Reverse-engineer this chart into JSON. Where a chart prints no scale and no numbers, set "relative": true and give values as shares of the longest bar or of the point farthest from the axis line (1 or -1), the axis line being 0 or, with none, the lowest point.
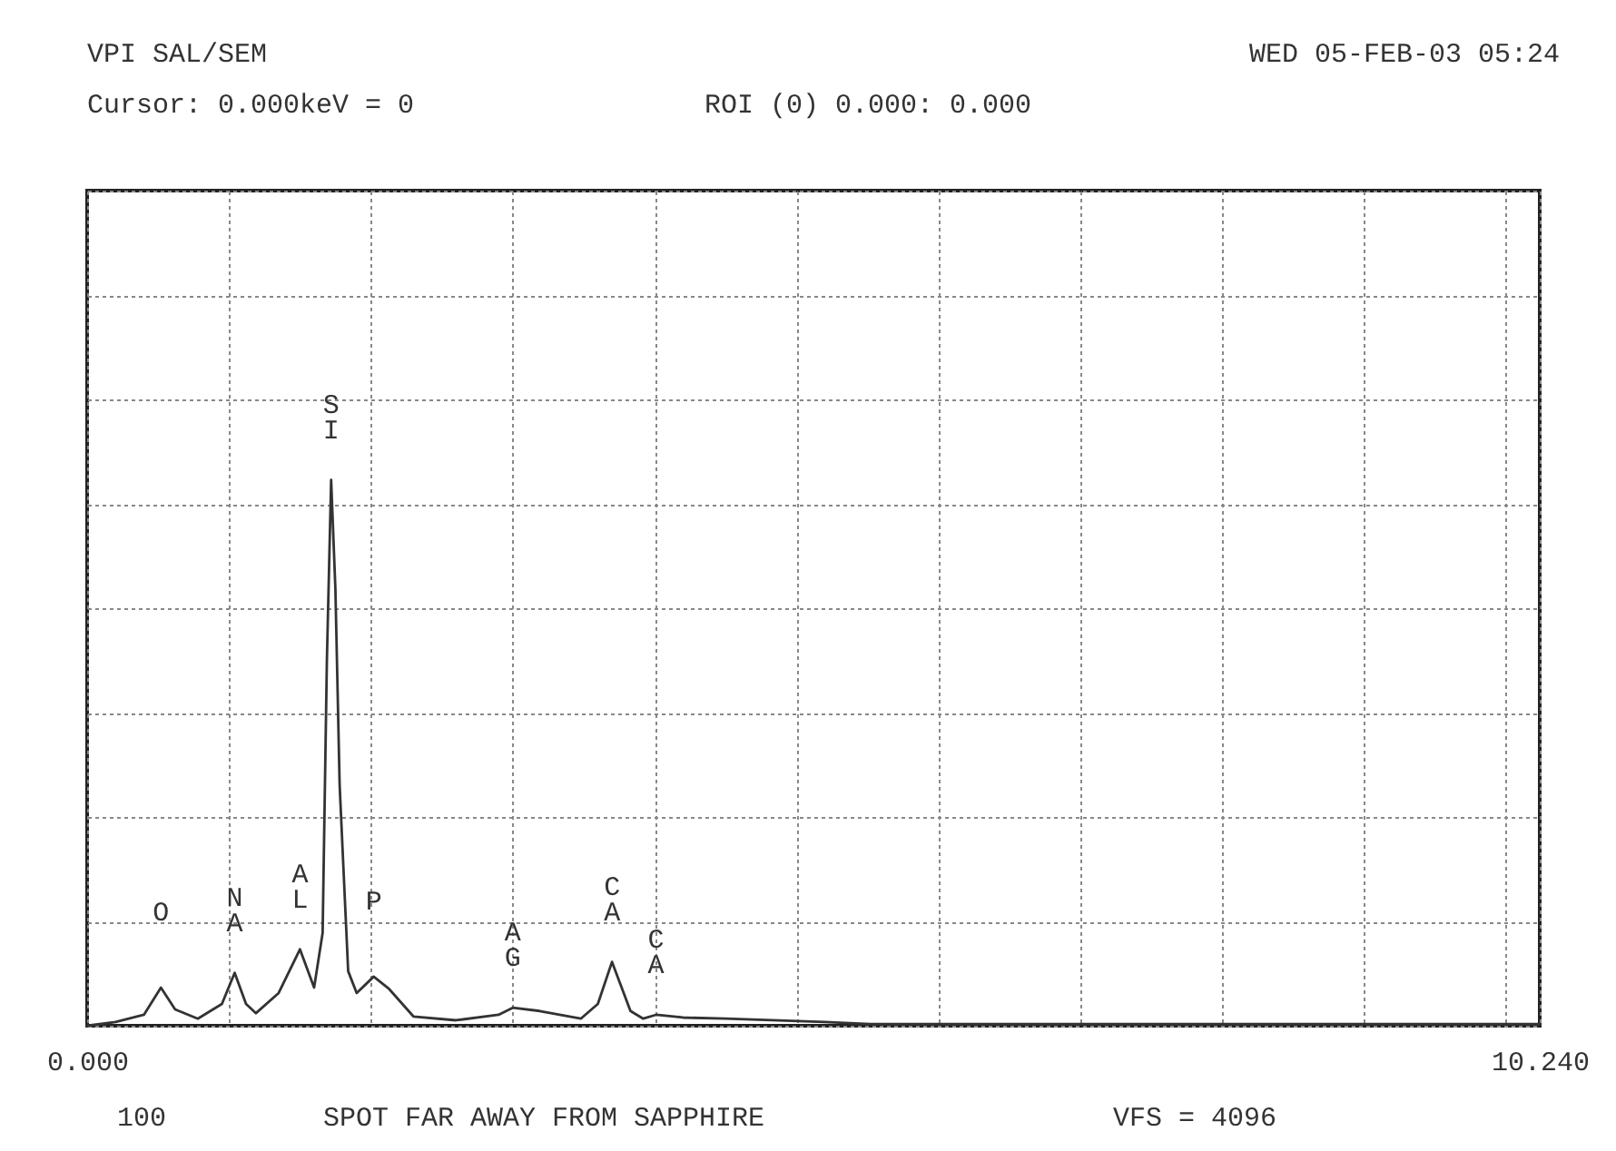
{
  "chart_data": {
    "type": "line",
    "title": "VPI SAL/SEM",
    "x": [
      0,
      0.2,
      0.4,
      0.52,
      0.62,
      0.78,
      0.95,
      1.04,
      1.12,
      1.19,
      1.35,
      1.5,
      1.6,
      1.66,
      1.69,
      1.72,
      1.75,
      1.78,
      1.84,
      1.9,
      2.02,
      2.13,
      2.3,
      2.6,
      2.9,
      3.0,
      3.19,
      3.48,
      3.6,
      3.7,
      3.83,
      3.92,
      4.01,
      4.2,
      4.5,
      5.2,
      5.52,
      7.0,
      10.24
    ],
    "series": [
      {
        "color": "#333333",
        "values": [
          0,
          0.007,
          0.02,
          0.07,
          0.03,
          0.013,
          0.04,
          0.097,
          0.04,
          0.023,
          0.06,
          0.14,
          0.07,
          0.17,
          0.67,
          1.0,
          0.8,
          0.44,
          0.1,
          0.06,
          0.09,
          0.067,
          0.017,
          0.01,
          0.02,
          0.033,
          0.027,
          0.013,
          0.04,
          0.117,
          0.027,
          0.013,
          0.02,
          0.015,
          0.013,
          0.007,
          0.003,
          0.003,
          0.003
        ]
      }
    ],
    "relative": true,
    "xlim": [
      0,
      10.24
    ],
    "xticks": [
      {
        "value": 0,
        "label": "0.000"
      },
      {
        "value": 1,
        "label": null
      },
      {
        "value": 2,
        "label": null
      },
      {
        "value": 3,
        "label": null
      },
      {
        "value": 4,
        "label": null
      },
      {
        "value": 5,
        "label": null
      },
      {
        "value": 6,
        "label": null
      },
      {
        "value": 7,
        "label": null
      },
      {
        "value": 8,
        "label": null
      },
      {
        "value": 9,
        "label": null
      },
      {
        "value": 10,
        "label": null
      },
      {
        "value": 10.24,
        "label": "10.240"
      }
    ],
    "grid": true,
    "annotations": [
      "WED 05-FEB-03  05:24",
      "Cursor: 0.000keV = 0",
      "ROI    (0) 0.000: 0.000",
      "VFS = 4096",
      "100",
      "SPOT FAR AWAY FROM SAPPHIRE",
      {
        "text": "O",
        "x": 0.52,
        "y": 0.07
      },
      {
        "text": "NA",
        "x": 1.04,
        "y": 0.097
      },
      {
        "text": "AL",
        "x": 1.5,
        "y": 0.14
      },
      {
        "text": "SI",
        "x": 1.72,
        "y": 1.0
      },
      {
        "text": "P",
        "x": 2.02,
        "y": 0.09
      },
      {
        "text": "AG",
        "x": 3.0,
        "y": 0.033
      },
      {
        "text": "CA",
        "x": 3.7,
        "y": 0.117
      },
      {
        "text": "CA",
        "x": 4.01,
        "y": 0.02
      }
    ]
  }
}
